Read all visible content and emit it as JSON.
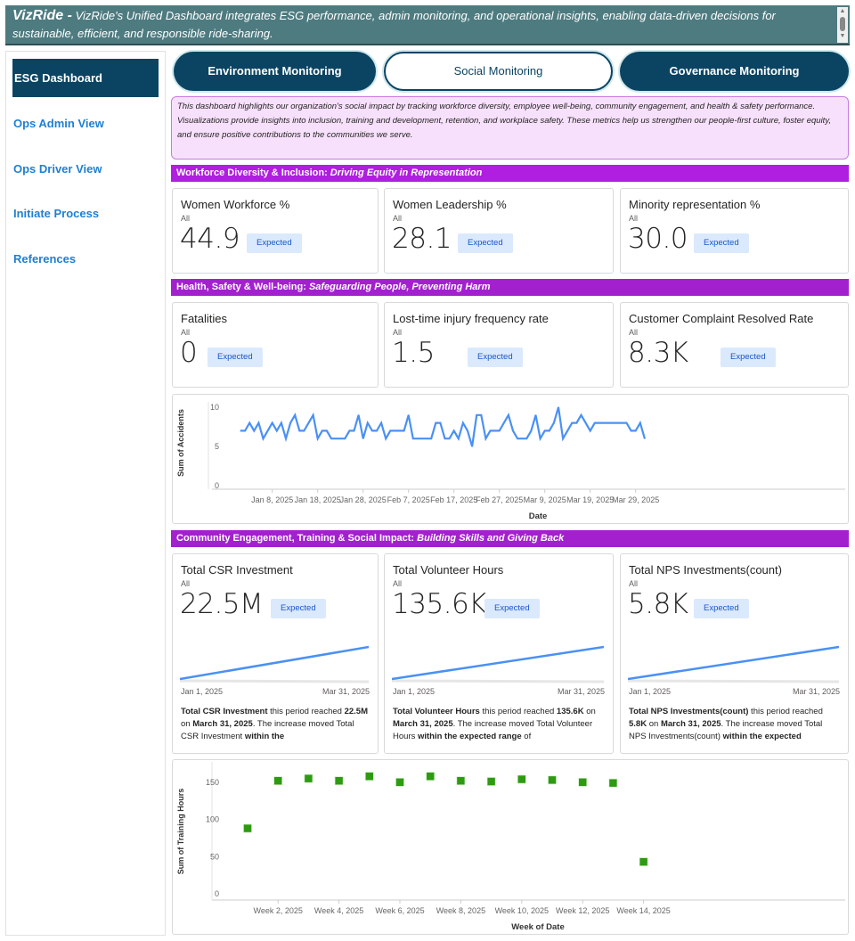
{
  "header": {
    "brand": "VizRide -",
    "text": "VizRide's Unified Dashboard integrates ESG performance, admin monitoring, and operational insights, enabling data-driven decisions for sustainable, efficient, and responsible ride-sharing."
  },
  "sidebar": {
    "items": [
      {
        "label": "ESG Dashboard",
        "active": true
      },
      {
        "label": "Ops Admin View"
      },
      {
        "label": "Ops Driver View"
      },
      {
        "label": "Initiate Process"
      },
      {
        "label": "References"
      }
    ]
  },
  "tabs": [
    {
      "label": "Environment Monitoring"
    },
    {
      "label": "Social Monitoring",
      "selected": true
    },
    {
      "label": "Governance Monitoring"
    }
  ],
  "description": "This dashboard highlights our organization's social impact by tracking workforce diversity, employee well-being, community engagement, and health & safety performance. Visualizations provide insights into inclusion, training and development, retention, and workplace safety. These metrics help us strengthen our people-first culture, foster equity, and ensure positive contributions to the communities we serve.",
  "sections": [
    {
      "title": "Workforce Diversity & Inclusion:",
      "subtitle": "Driving Equity in Representation"
    },
    {
      "title": "Health, Safety & Well-being:",
      "subtitle": "Safeguarding People, Preventing Harm"
    },
    {
      "title": "Community Engagement, Training & Social Impact:",
      "subtitle": "Building Skills and Giving Back"
    }
  ],
  "kpis_diversity": [
    {
      "title": "Women Workforce %",
      "filter": "All",
      "value": "44.9",
      "status": "Expected"
    },
    {
      "title": "Women Leadership %",
      "filter": "All",
      "value": "28.1",
      "status": "Expected"
    },
    {
      "title": "Minority representation %",
      "filter": "All",
      "value": "30.0",
      "status": "Expected"
    }
  ],
  "kpis_safety": [
    {
      "title": "Fatalities",
      "filter": "All",
      "value": "0",
      "status": "Expected"
    },
    {
      "title": "Lost-time injury frequency rate",
      "filter": "All",
      "value": "1.5",
      "status": "Expected"
    },
    {
      "title": "Customer Complaint Resolved Rate",
      "filter": "All",
      "value": "8.3K",
      "status": "Expected"
    }
  ],
  "kpis_community": [
    {
      "title": "Total CSR Investment",
      "filter": "All",
      "value": "22.5M",
      "status": "Expected",
      "start": "Jan 1, 2025",
      "end": "Mar 31, 2025",
      "n_metric": "Total CSR Investment",
      "n1": " this period reached ",
      "n_value": "22.5M",
      "n2": " on ",
      "n_date": "March 31, 2025",
      "n3": ". The increase moved Total CSR Investment ",
      "n_range": "within the"
    },
    {
      "title": "Total Volunteer Hours",
      "filter": "All",
      "value": "135.6K",
      "status": "Expected",
      "start": "Jan 1, 2025",
      "end": "Mar 31, 2025",
      "n_metric": "Total Volunteer Hours",
      "n1": " this period reached ",
      "n_value": "135.6K",
      "n2": " on ",
      "n_date": "March 31, 2025",
      "n3": ". The increase moved Total Volunteer Hours ",
      "n_range": "within the expected range",
      "n4": " of"
    },
    {
      "title": "Total NPS Investments(count)",
      "filter": "All",
      "value": "5.8K",
      "status": "Expected",
      "start": "Jan 1, 2025",
      "end": "Mar 31, 2025",
      "n_metric": "Total NPS Investments(count)",
      "n1": " this period reached ",
      "n_value": "5.8K",
      "n2": " on ",
      "n_date": "March 31, 2025",
      "n3": ". The increase moved Total NPS Investments(count) ",
      "n_range": "within the expected"
    }
  ],
  "colors": {
    "header": "#4e7b80",
    "nav": "#0b4462",
    "section": "#b01ee0",
    "line": "#4a90f5",
    "scatter": "#2e9a12",
    "badge_bg": "#dbe9fd"
  },
  "chart_data": [
    {
      "type": "line",
      "xlabel": "Date",
      "ylabel": "Sum of Accidents",
      "ylim": [
        0,
        10
      ],
      "yticks": [
        0,
        5,
        10
      ],
      "x_start": "2025-01-01",
      "x_end": "2025-03-31",
      "xticks": [
        "Jan 8, 2025",
        "Jan 18, 2025",
        "Jan 28, 2025",
        "Feb 7, 2025",
        "Feb 17, 2025",
        "Feb 27, 2025",
        "Mar 9, 2025",
        "Mar 19, 2025",
        "Mar 29, 2025"
      ],
      "values": [
        7,
        7,
        8,
        7,
        8,
        6,
        7,
        8,
        7,
        8,
        6,
        8,
        9,
        7,
        7,
        8,
        9,
        6,
        7,
        7,
        6,
        6,
        6,
        6,
        7,
        7,
        9,
        6,
        8,
        7,
        7,
        8,
        6,
        7,
        7,
        7,
        7,
        9,
        6,
        6,
        6,
        6,
        6,
        8,
        8,
        6,
        6,
        7,
        6,
        8,
        7,
        5,
        9,
        9,
        6,
        7,
        7,
        7,
        8,
        9,
        7,
        6,
        6,
        6,
        7,
        9,
        6,
        7,
        7,
        8,
        10,
        6,
        7,
        8,
        8,
        9,
        8,
        7,
        8,
        8,
        8,
        8,
        8,
        8,
        8,
        8,
        7,
        7,
        8,
        6
      ]
    },
    {
      "type": "scatter",
      "xlabel": "Week of Date",
      "ylabel": "Sum of Training Hours",
      "ylim": [
        0,
        175
      ],
      "yticks": [
        0,
        50,
        100,
        150
      ],
      "xticks": [
        "Week 2, 2025",
        "Week 4, 2025",
        "Week 6, 2025",
        "Week 8, 2025",
        "Week 10, 2025",
        "Week 12, 2025",
        "Week 14, 2025"
      ],
      "x": [
        1,
        2,
        3,
        4,
        5,
        6,
        7,
        8,
        9,
        10,
        11,
        12,
        13,
        14
      ],
      "values": [
        88,
        152,
        155,
        152,
        158,
        150,
        158,
        152,
        151,
        154,
        153,
        150,
        149,
        43
      ]
    }
  ]
}
